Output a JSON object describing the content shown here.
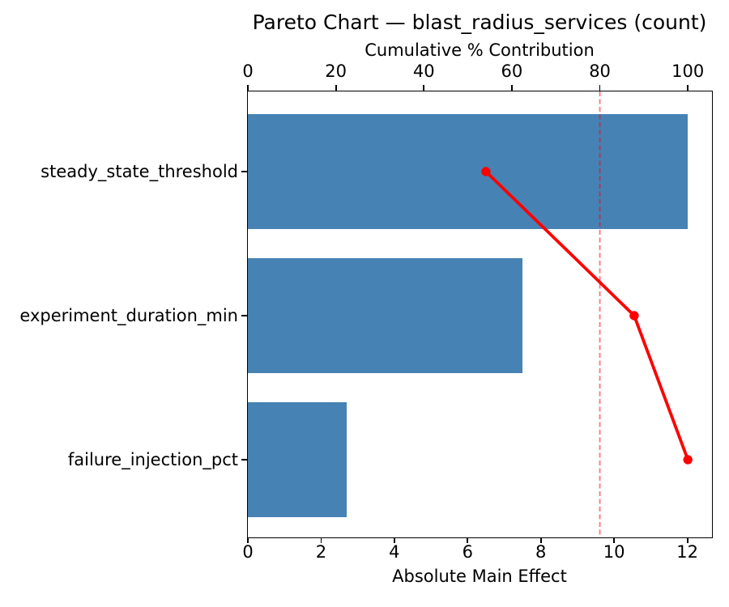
{
  "chart_data": {
    "type": "bar",
    "orientation": "horizontal",
    "title": "Pareto Chart — blast_radius_services (count)",
    "xlabel_top": "Cumulative % Contribution",
    "xlabel_bottom": "Absolute Main Effect",
    "categories": [
      "steady_state_threshold",
      "experiment_duration_min",
      "failure_injection_pct"
    ],
    "values": [
      12,
      7.5,
      2.7
    ],
    "cumulative_pct": [
      54.1,
      87.8,
      100
    ],
    "threshold_pct": 80,
    "x_bottom": {
      "min": 0,
      "max": 12.65,
      "ticks": [
        0,
        2,
        4,
        6,
        8,
        10,
        12
      ]
    },
    "x_top": {
      "min": 0,
      "max": 105.3,
      "ticks": [
        0,
        20,
        40,
        60,
        80,
        100
      ]
    },
    "legend": "none",
    "grid": "off",
    "colors": {
      "bar": "#4682B4",
      "cumulative_line": "#FF0000",
      "threshold_line": "#FF0000",
      "threshold_opacity": 0.55,
      "text": "#000000",
      "axis": "#000000"
    }
  }
}
